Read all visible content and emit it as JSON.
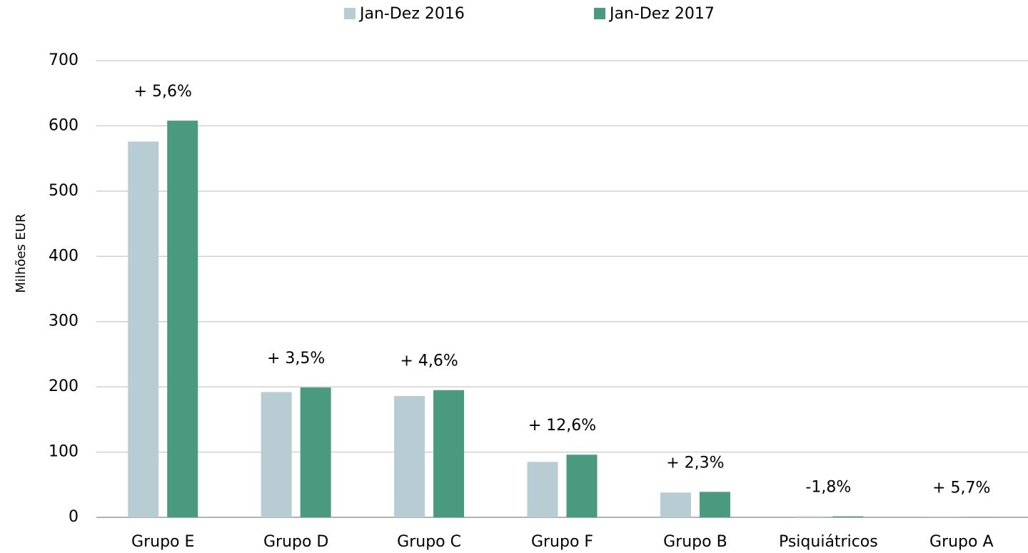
{
  "chart_data": {
    "type": "bar",
    "y_label": "Milhões EUR",
    "categories": [
      "Grupo E",
      "Grupo D",
      "Grupo C",
      "Grupo F",
      "Grupo B",
      "Psiquiátricos",
      "Grupo A"
    ],
    "series": [
      {
        "name": "Jan-Dez 2016",
        "color": "#b8cdd3",
        "values": [
          576,
          192,
          186,
          85,
          38,
          1.5,
          0.3
        ]
      },
      {
        "name": "Jan-Dez 2017",
        "color": "#4a9a80",
        "values": [
          608,
          199,
          195,
          96,
          39,
          1.5,
          0.3
        ]
      }
    ],
    "annotations": [
      "+ 5,6%",
      "+ 3,5%",
      "+ 4,6%",
      "+ 12,6%",
      "+ 2,3%",
      "-1,8%",
      "+ 5,7%"
    ],
    "ylim": [
      0,
      700
    ],
    "yticks": [
      0,
      100,
      200,
      300,
      400,
      500,
      600,
      700
    ],
    "grid": true,
    "legend": "top"
  }
}
